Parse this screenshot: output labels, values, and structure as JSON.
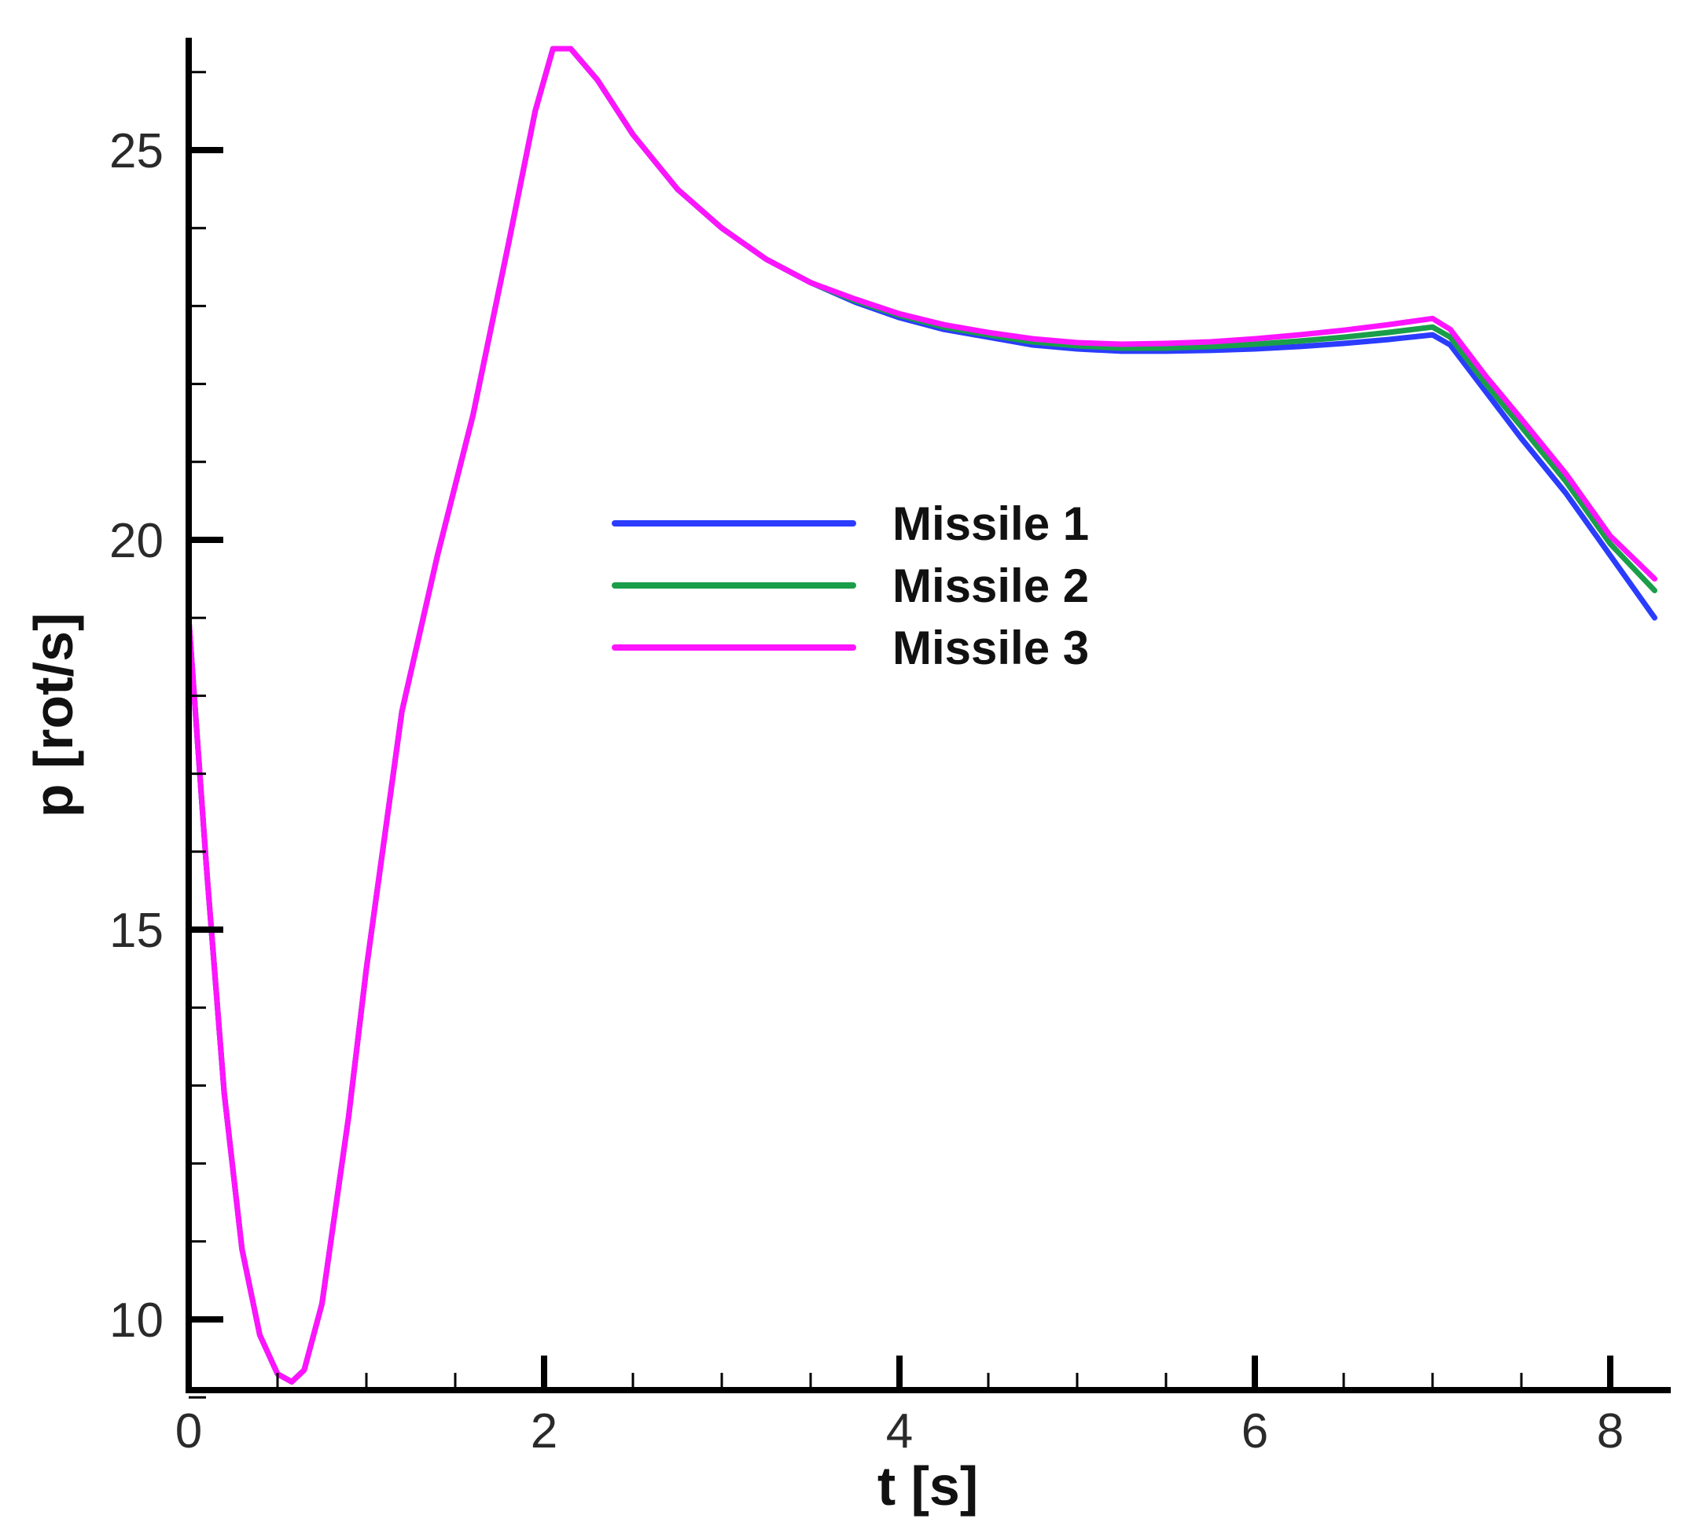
{
  "chart_data": {
    "type": "line",
    "title": "",
    "xlabel": "t [s]",
    "ylabel": "p [rot/s]",
    "xlim": [
      0,
      8.3
    ],
    "ylim": [
      9.0,
      26.4
    ],
    "x_major_ticks": [
      "0",
      "2",
      "4",
      "6",
      "8"
    ],
    "y_major_ticks": [
      "10",
      "15",
      "20",
      "25"
    ],
    "grid": false,
    "legend_position": "center",
    "series": [
      {
        "name": "Missile 1",
        "color": "#2b3cff",
        "x": [
          0,
          0.1,
          0.2,
          0.3,
          0.4,
          0.5,
          0.58,
          0.65,
          0.75,
          0.9,
          1.0,
          1.2,
          1.4,
          1.6,
          1.8,
          1.95,
          2.05,
          2.15,
          2.3,
          2.5,
          2.75,
          3.0,
          3.25,
          3.5,
          3.75,
          4.0,
          4.25,
          4.5,
          4.75,
          5.0,
          5.25,
          5.5,
          5.75,
          6.0,
          6.25,
          6.5,
          6.75,
          7.0,
          7.1,
          7.3,
          7.5,
          7.75,
          8.0,
          8.25
        ],
        "y": [
          19.0,
          15.8,
          12.9,
          10.9,
          9.8,
          9.3,
          9.2,
          9.35,
          10.2,
          12.6,
          14.5,
          17.8,
          19.8,
          21.6,
          23.8,
          25.5,
          26.3,
          26.3,
          25.9,
          25.2,
          24.5,
          24.0,
          23.6,
          23.3,
          23.05,
          22.85,
          22.7,
          22.6,
          22.5,
          22.45,
          22.42,
          22.42,
          22.43,
          22.45,
          22.48,
          22.52,
          22.57,
          22.63,
          22.5,
          21.9,
          21.3,
          20.6,
          19.8,
          19.0
        ]
      },
      {
        "name": "Missile 2",
        "color": "#1a9e4a",
        "x": [
          0,
          0.1,
          0.2,
          0.3,
          0.4,
          0.5,
          0.58,
          0.65,
          0.75,
          0.9,
          1.0,
          1.2,
          1.4,
          1.6,
          1.8,
          1.95,
          2.05,
          2.15,
          2.3,
          2.5,
          2.75,
          3.0,
          3.25,
          3.5,
          3.75,
          4.0,
          4.25,
          4.5,
          4.75,
          5.0,
          5.25,
          5.5,
          5.75,
          6.0,
          6.25,
          6.5,
          6.75,
          7.0,
          7.1,
          7.3,
          7.5,
          7.75,
          8.0,
          8.25
        ],
        "y": [
          19.0,
          15.8,
          12.9,
          10.9,
          9.8,
          9.3,
          9.2,
          9.35,
          10.2,
          12.6,
          14.5,
          17.8,
          19.8,
          21.6,
          23.8,
          25.5,
          26.3,
          26.3,
          25.9,
          25.2,
          24.5,
          24.0,
          23.6,
          23.3,
          23.07,
          22.88,
          22.73,
          22.63,
          22.54,
          22.49,
          22.46,
          22.46,
          22.48,
          22.51,
          22.55,
          22.6,
          22.66,
          22.73,
          22.6,
          22.0,
          21.45,
          20.75,
          19.95,
          19.35
        ]
      },
      {
        "name": "Missile 3",
        "color": "#ff14ff",
        "x": [
          0,
          0.1,
          0.2,
          0.3,
          0.4,
          0.5,
          0.58,
          0.65,
          0.75,
          0.9,
          1.0,
          1.2,
          1.4,
          1.6,
          1.8,
          1.95,
          2.05,
          2.15,
          2.3,
          2.5,
          2.75,
          3.0,
          3.25,
          3.5,
          3.75,
          4.0,
          4.25,
          4.5,
          4.75,
          5.0,
          5.25,
          5.5,
          5.75,
          6.0,
          6.25,
          6.5,
          6.75,
          7.0,
          7.1,
          7.3,
          7.5,
          7.75,
          8.0,
          8.25
        ],
        "y": [
          19.0,
          15.8,
          12.9,
          10.9,
          9.8,
          9.3,
          9.2,
          9.35,
          10.2,
          12.6,
          14.5,
          17.8,
          19.8,
          21.6,
          23.8,
          25.5,
          26.3,
          26.3,
          25.9,
          25.2,
          24.5,
          24.0,
          23.6,
          23.3,
          23.09,
          22.9,
          22.76,
          22.66,
          22.58,
          22.53,
          22.51,
          22.52,
          22.54,
          22.58,
          22.63,
          22.69,
          22.76,
          22.84,
          22.7,
          22.1,
          21.55,
          20.85,
          20.05,
          19.5
        ]
      }
    ]
  }
}
